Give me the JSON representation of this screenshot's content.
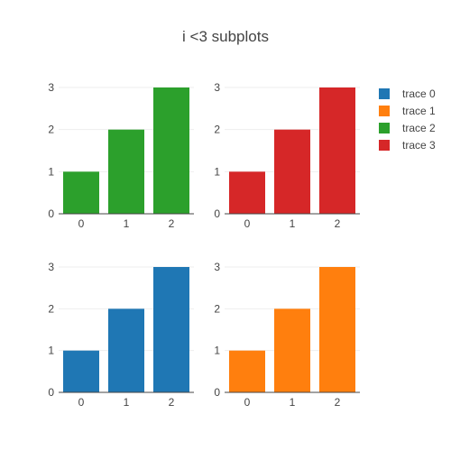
{
  "chart_data": {
    "type": "bar",
    "title": "i <3 subplots",
    "layout": "2x2 subplot grid",
    "legend_position": "top-right",
    "grid": true,
    "subplots": [
      {
        "position": "top-left",
        "series": "trace 2",
        "categories": [
          "0",
          "1",
          "2"
        ],
        "values": [
          1,
          2,
          3
        ],
        "ylim": [
          0,
          3
        ],
        "yticks": [
          "0",
          "1",
          "2",
          "3"
        ]
      },
      {
        "position": "top-right",
        "series": "trace 3",
        "categories": [
          "0",
          "1",
          "2"
        ],
        "values": [
          1,
          2,
          3
        ],
        "ylim": [
          0,
          3
        ],
        "yticks": [
          "0",
          "1",
          "2",
          "3"
        ]
      },
      {
        "position": "bottom-left",
        "series": "trace 0",
        "categories": [
          "0",
          "1",
          "2"
        ],
        "values": [
          1,
          2,
          3
        ],
        "ylim": [
          0,
          3
        ],
        "yticks": [
          "0",
          "1",
          "2",
          "3"
        ]
      },
      {
        "position": "bottom-right",
        "series": "trace 1",
        "categories": [
          "0",
          "1",
          "2"
        ],
        "values": [
          1,
          2,
          3
        ],
        "ylim": [
          0,
          3
        ],
        "yticks": [
          "0",
          "1",
          "2",
          "3"
        ]
      }
    ],
    "series": [
      {
        "name": "trace 0",
        "color": "#1f77b4"
      },
      {
        "name": "trace 1",
        "color": "#ff7f0e"
      },
      {
        "name": "trace 2",
        "color": "#2ca02c"
      },
      {
        "name": "trace 3",
        "color": "#d62728"
      }
    ]
  }
}
